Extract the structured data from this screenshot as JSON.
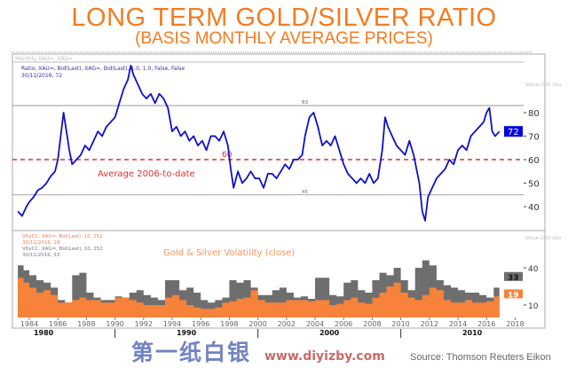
{
  "header": {
    "title": "LONG TERM GOLD/SILVER RATIO",
    "subtitle": "(BASIS MONTHLY AVERAGE PRICES)"
  },
  "source": "Source: Thomson Reuters Eikon",
  "watermark": {
    "logo_text": "第一纸白银",
    "url": "www.diyizby.com"
  },
  "colors": {
    "ratio_line": "#1010c8",
    "average_line": "#e03030",
    "gold_vol": "#f7823a",
    "silver_vol": "#6e6e6e",
    "title": "#f47b20"
  },
  "chart_data": [
    {
      "type": "line",
      "panel_label": "Monthly XAU=, XAG=",
      "legend": [
        "Ratio, XAU=, Bid(Last), XAG=, Bid(Last),  1.0, 1.0, False, False",
        "30/11/2016, 72"
      ],
      "right_axis_units": [
        "Value",
        "USD",
        "Ozs"
      ],
      "ylim": [
        33,
        103
      ],
      "yticks": [
        "80",
        "70",
        "60",
        "50",
        "40"
      ],
      "last_value_label": "72",
      "reference_lines": [
        {
          "value": 83,
          "label": "83"
        },
        {
          "value": 45,
          "label": "45"
        },
        {
          "value": 60,
          "label": "60",
          "style": "dashed",
          "annotation": "Average 2006-to-date"
        }
      ],
      "series": [
        {
          "x": [
            1983.2,
            1983.5,
            1983.8,
            1984.0,
            1984.3,
            1984.6,
            1984.9,
            1985.2,
            1985.5,
            1985.8,
            1986.0,
            1986.2,
            1986.4,
            1986.6,
            1986.8,
            1987.0,
            1987.3,
            1987.6,
            1987.9,
            1988.2,
            1988.5,
            1988.8,
            1989.1,
            1989.4,
            1989.7,
            1990.0,
            1990.3,
            1990.6,
            1990.9,
            1991.1,
            1991.3,
            1991.6,
            1991.9,
            1992.2,
            1992.5,
            1992.8,
            1993.1,
            1993.4,
            1993.7,
            1994.0,
            1994.3,
            1994.6,
            1994.9,
            1995.2,
            1995.5,
            1995.8,
            1996.1,
            1996.4,
            1996.7,
            1997.0,
            1997.3,
            1997.6,
            1997.9,
            1998.1,
            1998.3,
            1998.6,
            1998.9,
            1999.2,
            1999.5,
            1999.8,
            2000.1,
            2000.4,
            2000.7,
            2001.0,
            2001.3,
            2001.6,
            2001.9,
            2002.2,
            2002.5,
            2002.8,
            2003.1,
            2003.3,
            2003.6,
            2003.9,
            2004.2,
            2004.5,
            2004.8,
            2005.1,
            2005.4,
            2005.7,
            2006.0,
            2006.3,
            2006.6,
            2006.9,
            2007.2,
            2007.5,
            2007.8,
            2008.1,
            2008.4,
            2008.7,
            2008.9,
            2009.1,
            2009.4,
            2009.7,
            2010.0,
            2010.3,
            2010.6,
            2010.9,
            2011.1,
            2011.3,
            2011.5,
            2011.7,
            2011.9,
            2012.2,
            2012.5,
            2012.8,
            2013.1,
            2013.4,
            2013.7,
            2014.0,
            2014.3,
            2014.6,
            2014.9,
            2015.2,
            2015.5,
            2015.8,
            2016.0,
            2016.2,
            2016.4,
            2016.6,
            2016.9
          ],
          "values": [
            38,
            36,
            40,
            42,
            44,
            47,
            48,
            50,
            53,
            55,
            60,
            70,
            80,
            72,
            64,
            58,
            60,
            62,
            66,
            64,
            68,
            72,
            70,
            74,
            76,
            78,
            84,
            90,
            94,
            100,
            96,
            92,
            88,
            86,
            88,
            84,
            88,
            86,
            82,
            72,
            74,
            70,
            72,
            68,
            70,
            66,
            68,
            64,
            70,
            70,
            68,
            72,
            66,
            56,
            48,
            55,
            50,
            52,
            55,
            52,
            52,
            48,
            54,
            54,
            52,
            55,
            58,
            56,
            60,
            60,
            62,
            70,
            78,
            80,
            74,
            66,
            68,
            66,
            70,
            64,
            58,
            54,
            52,
            50,
            52,
            50,
            54,
            50,
            52,
            64,
            78,
            74,
            70,
            66,
            64,
            62,
            68,
            62,
            56,
            50,
            38,
            34,
            44,
            48,
            52,
            54,
            56,
            60,
            58,
            64,
            66,
            64,
            70,
            72,
            74,
            76,
            80,
            82,
            72,
            70,
            72
          ]
        }
      ]
    },
    {
      "type": "area",
      "annotation": "Gold & Silver Volatility (close)",
      "legend": [
        "VltyCC, XAU=, Bid(Last),  10, 252",
        "30/11/2016, 19",
        "VltyCC, XAG=, Bid(Last),  10, 252",
        "30/11/2016, 33"
      ],
      "right_axis_units": [
        "Value",
        "USD",
        "Ozs"
      ],
      "ylim": [
        0,
        50
      ],
      "yticks": [
        "40",
        "10"
      ],
      "last_value_labels": [
        "33",
        "19"
      ],
      "x": [
        1983.2,
        1983.6,
        1984.0,
        1984.5,
        1985.0,
        1985.5,
        1986.0,
        1986.5,
        1987.0,
        1987.5,
        1988.0,
        1988.5,
        1989.0,
        1989.5,
        1990.0,
        1990.5,
        1991.0,
        1991.5,
        1992.0,
        1992.5,
        1993.0,
        1993.5,
        1994.0,
        1994.5,
        1995.0,
        1995.5,
        1996.0,
        1996.5,
        1997.0,
        1997.5,
        1998.0,
        1998.5,
        1999.0,
        1999.5,
        2000.0,
        2000.5,
        2001.0,
        2001.5,
        2002.0,
        2002.5,
        2003.0,
        2003.5,
        2004.0,
        2004.5,
        2005.0,
        2005.5,
        2006.0,
        2006.5,
        2007.0,
        2007.5,
        2008.0,
        2008.5,
        2009.0,
        2009.5,
        2010.0,
        2010.5,
        2011.0,
        2011.5,
        2012.0,
        2012.5,
        2013.0,
        2013.5,
        2014.0,
        2014.5,
        2015.0,
        2015.5,
        2016.0,
        2016.5,
        2016.9
      ],
      "series": [
        {
          "name": "XAG=",
          "values": [
            42,
            38,
            34,
            30,
            28,
            24,
            14,
            12,
            34,
            36,
            20,
            16,
            14,
            14,
            17,
            16,
            20,
            22,
            18,
            16,
            14,
            30,
            30,
            22,
            24,
            20,
            14,
            12,
            14,
            16,
            30,
            28,
            30,
            24,
            18,
            18,
            22,
            24,
            20,
            16,
            17,
            15,
            32,
            32,
            18,
            17,
            28,
            30,
            22,
            20,
            30,
            36,
            34,
            40,
            30,
            22,
            40,
            46,
            42,
            30,
            26,
            24,
            22,
            20,
            20,
            18,
            16,
            24,
            33
          ]
        },
        {
          "name": "XAU=",
          "values": [
            32,
            28,
            24,
            20,
            22,
            18,
            12,
            12,
            14,
            16,
            14,
            14,
            12,
            12,
            16,
            16,
            14,
            12,
            10,
            10,
            10,
            16,
            18,
            14,
            10,
            8,
            7,
            7,
            8,
            12,
            13,
            15,
            16,
            22,
            14,
            12,
            12,
            12,
            14,
            14,
            14,
            13,
            14,
            14,
            10,
            11,
            14,
            16,
            12,
            11,
            16,
            20,
            25,
            28,
            20,
            16,
            14,
            18,
            24,
            22,
            14,
            12,
            12,
            14,
            12,
            12,
            13,
            17,
            19
          ]
        }
      ]
    }
  ],
  "x_axis": {
    "year_ticks": [
      "1984",
      "1986",
      "1988",
      "1990",
      "1992",
      "1994",
      "1996",
      "1998",
      "2000",
      "2002",
      "2004",
      "2006",
      "2008",
      "2010",
      "2012",
      "2014",
      "2016",
      "2018"
    ],
    "decade_labels": [
      "1980",
      "1990",
      "2000",
      "2010"
    ]
  }
}
